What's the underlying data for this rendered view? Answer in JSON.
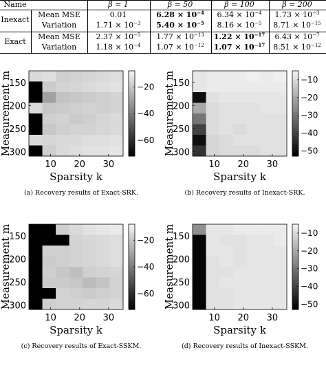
{
  "table": {
    "header": [
      "Name",
      "β = 1",
      "β = 50",
      "β = 100",
      "β = 200"
    ],
    "rows": [
      {
        "group": "Inexact",
        "metric": "Mean MSE",
        "values": [
          {
            "m": "0.01",
            "e": ""
          },
          {
            "m": "6.28 × 10",
            "e": "−4",
            "bold": true
          },
          {
            "m": "6.34 × 10",
            "e": "−4"
          },
          {
            "m": "1.73 × 10",
            "e": "−3"
          }
        ]
      },
      {
        "group": "",
        "metric": "Variation",
        "values": [
          {
            "m": "1.71 × 10",
            "e": "−3"
          },
          {
            "m": "5.40 × 10",
            "e": "−5",
            "bold": true
          },
          {
            "m": "8.16 × 10",
            "e": "−5"
          },
          {
            "m": "8.71 × 10",
            "e": "−15"
          }
        ]
      },
      {
        "group": "Exact",
        "metric": "Mean MSE",
        "values": [
          {
            "m": "2.37 × 10",
            "e": "−5"
          },
          {
            "m": "1.77 × 10",
            "e": "−13"
          },
          {
            "m": "1.22 × 10",
            "e": "−17",
            "bold": true
          },
          {
            "m": "6.43 × 10",
            "e": "−7"
          }
        ]
      },
      {
        "group": "",
        "metric": "Variation",
        "values": [
          {
            "m": "1.18 × 10",
            "e": "−4"
          },
          {
            "m": "1.07 × 10",
            "e": "−12"
          },
          {
            "m": "1.07 × 10",
            "e": "−17",
            "bold": true
          },
          {
            "m": "8.51 × 10",
            "e": "−12"
          }
        ]
      }
    ]
  },
  "chart_data": [
    {
      "type": "heatmap",
      "caption": "(a) Recovery results of Exact-SRK.",
      "xlabel": "Sparsity k",
      "ylabel": "Measurement m",
      "x_ticks": [
        10,
        20,
        30
      ],
      "y_ticks": [
        150,
        200,
        250,
        300
      ],
      "colorbar_ticks": [
        -20,
        -40,
        -60
      ],
      "colorbar_range": [
        -72,
        -8
      ],
      "values": [
        [
          -15,
          -14,
          -18,
          -17,
          -16,
          -15,
          -14
        ],
        [
          -72,
          -19,
          -17,
          -16,
          -15,
          -14,
          -13
        ],
        [
          -72,
          -30,
          -21,
          -20,
          -19,
          -18,
          -17
        ],
        [
          -15,
          -20,
          -19,
          -18,
          -17,
          -18,
          -17
        ],
        [
          -72,
          -18,
          -17,
          -19,
          -18,
          -16,
          -15
        ],
        [
          -72,
          -20,
          -18,
          -17,
          -17,
          -16,
          -15
        ],
        [
          -15,
          -16,
          -15,
          -15,
          -14,
          -14,
          -13
        ],
        [
          -72,
          -18,
          -15,
          -14,
          -13,
          -13,
          -12
        ]
      ]
    },
    {
      "type": "heatmap",
      "caption": "(b) Recovery results of Inexact-SRK.",
      "xlabel": "Sparsity k",
      "ylabel": "Measurement m",
      "x_ticks": [
        10,
        20,
        30
      ],
      "y_ticks": [
        150,
        200,
        250,
        300
      ],
      "colorbar_ticks": [
        -10,
        -20,
        -30,
        -40,
        -50
      ],
      "colorbar_range": [
        -53,
        -5
      ],
      "values": [
        [
          -8,
          -7,
          -7,
          -7,
          -6,
          -7,
          -6
        ],
        [
          -8,
          -7,
          -7,
          -7,
          -7,
          -7,
          -7
        ],
        [
          -50,
          -9,
          -8,
          -8,
          -8,
          -8,
          -8
        ],
        [
          -20,
          -10,
          -9,
          -9,
          -9,
          -8,
          -8
        ],
        [
          -30,
          -10,
          -9,
          -9,
          -9,
          -9,
          -9
        ],
        [
          -40,
          -10,
          -9,
          -10,
          -9,
          -9,
          -9
        ],
        [
          -50,
          -11,
          -10,
          -9,
          -9,
          -9,
          -9
        ],
        [
          -43,
          -11,
          -10,
          -10,
          -10,
          -9,
          -9
        ]
      ]
    },
    {
      "type": "heatmap",
      "caption": "(c) Recovery results of Exact-SSKM.",
      "xlabel": "Sparsity k",
      "ylabel": "Measurement m",
      "x_ticks": [
        10,
        20,
        30
      ],
      "y_ticks": [
        150,
        200,
        250,
        300
      ],
      "colorbar_ticks": [
        -20,
        -40,
        -60
      ],
      "colorbar_range": [
        -72,
        -8
      ],
      "values": [
        [
          -72,
          -72,
          -18,
          -15,
          -13,
          -12,
          -11
        ],
        [
          -72,
          -72,
          -72,
          -17,
          -16,
          -15,
          -14
        ],
        [
          -72,
          -18,
          -18,
          -17,
          -16,
          -15,
          -14
        ],
        [
          -72,
          -19,
          -18,
          -17,
          -16,
          -15,
          -14
        ],
        [
          -72,
          -18,
          -20,
          -22,
          -18,
          -17,
          -16
        ],
        [
          -72,
          -19,
          -19,
          -20,
          -23,
          -21,
          -17
        ],
        [
          -72,
          -72,
          -17,
          -18,
          -19,
          -18,
          -17
        ],
        [
          -72,
          -18,
          -17,
          -17,
          -16,
          -16,
          -15
        ]
      ]
    },
    {
      "type": "heatmap",
      "caption": "(d) Recovery results of Inexact-SSKM.",
      "xlabel": "Sparsity k",
      "ylabel": "Measurement m",
      "x_ticks": [
        10,
        20,
        30
      ],
      "y_ticks": [
        150,
        200,
        250,
        300
      ],
      "colorbar_ticks": [
        -10,
        -20,
        -30,
        -40,
        -50
      ],
      "colorbar_range": [
        -53,
        -5
      ],
      "values": [
        [
          -25,
          -8,
          -8,
          -7,
          -7,
          -7,
          -7
        ],
        [
          -52,
          -8,
          -9,
          -9,
          -8,
          -8,
          -7
        ],
        [
          -52,
          -8,
          -8,
          -9,
          -8,
          -8,
          -8
        ],
        [
          -52,
          -9,
          -8,
          -9,
          -8,
          -8,
          -8
        ],
        [
          -52,
          -9,
          -9,
          -8,
          -8,
          -8,
          -8
        ],
        [
          -52,
          -9,
          -8,
          -8,
          -8,
          -8,
          -8
        ],
        [
          -52,
          -9,
          -9,
          -8,
          -8,
          -8,
          -8
        ],
        [
          -52,
          -9,
          -9,
          -8,
          -8,
          -8,
          -8
        ]
      ]
    }
  ]
}
